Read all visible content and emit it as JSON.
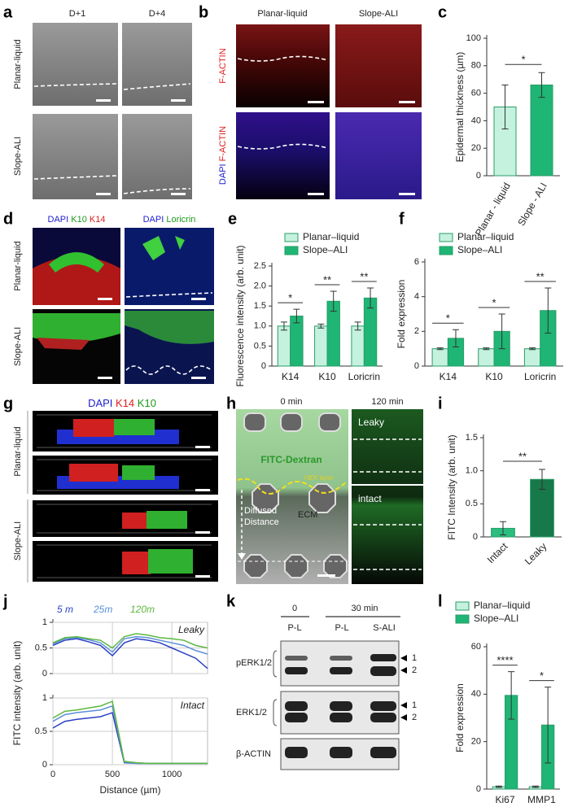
{
  "figure": {
    "a": {
      "label": "a",
      "columns": [
        "D+1",
        "D+4"
      ],
      "rows": [
        "Planar-liquid",
        "Slope-ALI"
      ]
    },
    "b": {
      "label": "b",
      "columns": [
        "Planar-liquid",
        "Slope-ALI"
      ],
      "stain_red": "F-ACTIN",
      "stain_blue": "DAPI"
    },
    "d": {
      "label": "d",
      "left_stains": [
        "DAPI",
        "K10",
        "K14"
      ],
      "right_stains": [
        "DAPI",
        "Loricrin"
      ],
      "rows": [
        "Planar-liquid",
        "Slope-ALI"
      ]
    },
    "g": {
      "label": "g",
      "stains": [
        "DAPI",
        "K14",
        "K10"
      ],
      "rows": [
        "Planar-liquid",
        "Slope-ALI"
      ]
    },
    "h": {
      "label": "h",
      "columns": [
        "0 min",
        "120 min"
      ],
      "dextran": "FITC-Dextran",
      "layer": "HEK layer",
      "distance": [
        "Diffused",
        "Distance"
      ],
      "ecm": "ECM",
      "leaky": "Leaky",
      "intact": "intact"
    },
    "k": {
      "label": "k",
      "times": [
        "0",
        "30 min"
      ],
      "lanes": [
        "P-L",
        "P-L",
        "S-ALI"
      ],
      "blots": [
        "pERK1/2",
        "ERK1/2",
        "β-ACTIN"
      ],
      "markers": [
        "1",
        "2"
      ]
    }
  },
  "chart_data": [
    {
      "type": "bar",
      "panel": "c",
      "ylabel": "Epidermal thickness (µm)",
      "categories": [
        "Planar - liquid",
        "Slope - ALI"
      ],
      "values": [
        50,
        66
      ],
      "errors": [
        16,
        9
      ],
      "colors": [
        "#c5f1df",
        "#1fb574"
      ],
      "ylim": [
        0,
        100
      ],
      "yticks": [
        0,
        20,
        40,
        60,
        80,
        100
      ],
      "significance": "*"
    },
    {
      "type": "bar",
      "panel": "e",
      "ylabel": "Fluorescence intensity (arb. unit)",
      "categories": [
        "K14",
        "K10",
        "Loricrin"
      ],
      "series": [
        {
          "name": "Planar–liquid",
          "color": "#c5f1df",
          "values": [
            1.0,
            1.0,
            1.0
          ],
          "errors": [
            0.1,
            0.05,
            0.1
          ]
        },
        {
          "name": "Slope–ALI",
          "color": "#1fb574",
          "values": [
            1.25,
            1.62,
            1.7
          ],
          "errors": [
            0.17,
            0.25,
            0.25
          ]
        }
      ],
      "ylim": [
        0,
        2.5
      ],
      "yticks": [
        0,
        0.5,
        {
          "value": 1,
          "label": "1.0"
        },
        1.5,
        {
          "value": 2,
          "label": "2.0"
        },
        2.5
      ],
      "significance": [
        "*",
        "**",
        "**"
      ]
    },
    {
      "type": "bar",
      "panel": "f",
      "ylabel": "Fold expression",
      "categories": [
        "K14",
        "K10",
        "Loricrin"
      ],
      "series": [
        {
          "name": "Planar–liquid",
          "color": "#c5f1df",
          "values": [
            1,
            1,
            1
          ],
          "errors": [
            0.05,
            0.05,
            0.05
          ]
        },
        {
          "name": "Slope–ALI",
          "color": "#1fb574",
          "values": [
            1.6,
            2.0,
            3.2
          ],
          "errors": [
            0.5,
            1.0,
            1.3
          ]
        }
      ],
      "ylim": [
        0,
        6
      ],
      "yticks": [
        0,
        2,
        4,
        6
      ],
      "significance": [
        "*",
        "*",
        "**"
      ]
    },
    {
      "type": "bar",
      "panel": "i",
      "ylabel": "FITC Intensity (arb. unit)",
      "categories": [
        "Intact",
        "Leaky"
      ],
      "values": [
        0.13,
        0.87
      ],
      "errors": [
        0.1,
        0.15
      ],
      "colors": [
        "#2bbd7e",
        "#17784a"
      ],
      "ylim": [
        0,
        1.5
      ],
      "yticks": [
        0,
        0.5,
        {
          "value": 1,
          "label": "1.0"
        },
        1.5
      ],
      "significance": "**"
    },
    {
      "type": "line",
      "panel": "j",
      "ylabel": "FITC intensity (arb. unit)",
      "annotation": "Leaky",
      "x": [
        0,
        100,
        200,
        300,
        400,
        500,
        600,
        700,
        800,
        900,
        1000,
        1100,
        1200,
        1300
      ],
      "series": [
        {
          "name": "5 m",
          "color": "#2b3fc4",
          "values": [
            0.55,
            0.65,
            0.68,
            0.62,
            0.55,
            0.35,
            0.6,
            0.68,
            0.65,
            0.6,
            0.5,
            0.4,
            0.3,
            0.1
          ]
        },
        {
          "name": "25m",
          "color": "#5a8fd8",
          "values": [
            0.58,
            0.68,
            0.7,
            0.66,
            0.6,
            0.42,
            0.68,
            0.72,
            0.7,
            0.65,
            0.6,
            0.55,
            0.45,
            0.38
          ]
        },
        {
          "name": "120m",
          "color": "#5cb83e",
          "values": [
            0.6,
            0.7,
            0.72,
            0.68,
            0.65,
            0.5,
            0.72,
            0.78,
            0.75,
            0.7,
            0.68,
            0.65,
            0.55,
            0.5
          ]
        }
      ],
      "xlim": [
        0,
        1300
      ],
      "xticks": [
        0,
        500,
        1000
      ],
      "ylim": [
        0,
        1
      ],
      "yticks": [
        0,
        0.5,
        1
      ],
      "grid": true
    },
    {
      "type": "line",
      "xlabel": "Distance (µm)",
      "annotation": "Intact",
      "x": [
        0,
        100,
        200,
        300,
        400,
        500,
        600,
        700,
        800,
        900,
        1000,
        1100,
        1200,
        1300
      ],
      "series": [
        {
          "color": "#2b3fc4",
          "values": [
            0.55,
            0.65,
            0.68,
            0.7,
            0.72,
            0.78,
            0.03,
            0.02,
            0.02,
            0.02,
            0.02,
            0.02,
            0.02,
            0.02
          ]
        },
        {
          "color": "#5a8fd8",
          "values": [
            0.65,
            0.75,
            0.78,
            0.8,
            0.82,
            0.88,
            0.04,
            0.02,
            0.02,
            0.02,
            0.02,
            0.02,
            0.02,
            0.02
          ]
        },
        {
          "color": "#5cb83e",
          "values": [
            0.7,
            0.8,
            0.82,
            0.85,
            0.88,
            0.95,
            0.05,
            0.03,
            0.02,
            0.02,
            0.02,
            0.02,
            0.02,
            0.02
          ]
        }
      ],
      "xlim": [
        0,
        1300
      ],
      "xticks": [
        0,
        500,
        1000
      ],
      "ylim": [
        0,
        1
      ],
      "yticks": [
        0,
        0.5,
        1
      ],
      "grid": true
    },
    {
      "type": "bar",
      "panel": "l",
      "ylabel": "Fold expression",
      "categories": [
        "Ki67",
        "MMP1"
      ],
      "series": [
        {
          "name": "Planar–liquid",
          "color": "#c5f1df",
          "values": [
            1,
            1
          ],
          "errors": [
            0.3,
            0.3
          ]
        },
        {
          "name": "Slope–ALI",
          "color": "#1fb574",
          "values": [
            39.5,
            27
          ],
          "errors": [
            10,
            16
          ]
        }
      ],
      "ylim": [
        0,
        60
      ],
      "yticks": [
        0,
        20,
        40,
        60
      ],
      "significance": [
        "****",
        "*"
      ]
    }
  ]
}
